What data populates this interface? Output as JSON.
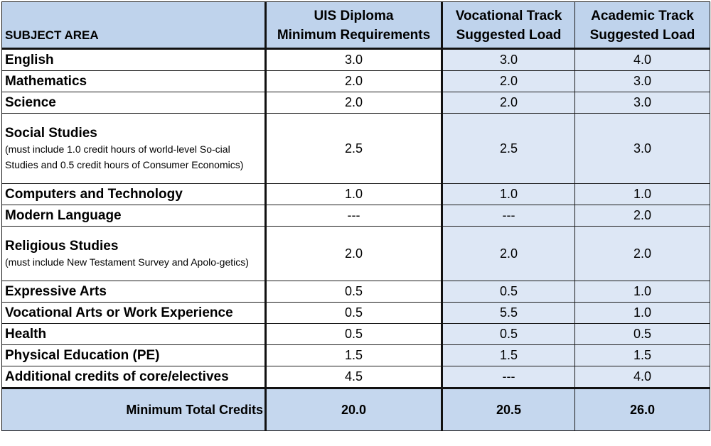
{
  "header": {
    "subject": "SUBJECT AREA",
    "col1": [
      "UIS Diploma",
      "Minimum Requirements"
    ],
    "col2": [
      "Vocational Track",
      "Suggested Load"
    ],
    "col3": [
      "Academic Track",
      "Suggested Load"
    ]
  },
  "rows": [
    {
      "subject": "English",
      "note": "",
      "uis": "3.0",
      "voc": "3.0",
      "acad": "4.0"
    },
    {
      "subject": "Mathematics",
      "note": "",
      "uis": "2.0",
      "voc": "2.0",
      "acad": "3.0"
    },
    {
      "subject": "Science",
      "note": "",
      "uis": "2.0",
      "voc": "2.0",
      "acad": "3.0"
    },
    {
      "subject": "Social Studies",
      "note": "(must include 1.0 credit hours of world-level So-cial Studies and 0.5 credit hours of Consumer Economics)",
      "uis": "2.5",
      "voc": "2.5",
      "acad": "3.0"
    },
    {
      "subject": "Computers and Technology",
      "note": "",
      "uis": "1.0",
      "voc": "1.0",
      "acad": "1.0"
    },
    {
      "subject": "Modern Language",
      "note": "",
      "uis": "---",
      "voc": "---",
      "acad": "2.0"
    },
    {
      "subject": "Religious Studies",
      "note": "(must include New Testament Survey and Apolo-getics)",
      "uis": "2.0",
      "voc": "2.0",
      "acad": "2.0"
    },
    {
      "subject": "Expressive Arts",
      "note": "",
      "uis": "0.5",
      "voc": "0.5",
      "acad": "1.0"
    },
    {
      "subject": "Vocational Arts or Work Experience",
      "note": "",
      "uis": "0.5",
      "voc": "5.5",
      "acad": "1.0"
    },
    {
      "subject": "Health",
      "note": "",
      "uis": "0.5",
      "voc": "0.5",
      "acad": "0.5"
    },
    {
      "subject": "Physical Education (PE)",
      "note": "",
      "uis": "1.5",
      "voc": "1.5",
      "acad": "1.5"
    },
    {
      "subject": "Additional credits of core/electives",
      "note": "",
      "uis": "4.5",
      "voc": "---",
      "acad": "4.0"
    }
  ],
  "total": {
    "label": "Minimum Total Credits",
    "uis": "20.0",
    "voc": "20.5",
    "acad": "26.0"
  },
  "colors": {
    "header_bg": "#bfd3ec",
    "shade_bg": "#dde7f5",
    "total_bg": "#c5d7ee",
    "border": "#1a1a1a"
  }
}
